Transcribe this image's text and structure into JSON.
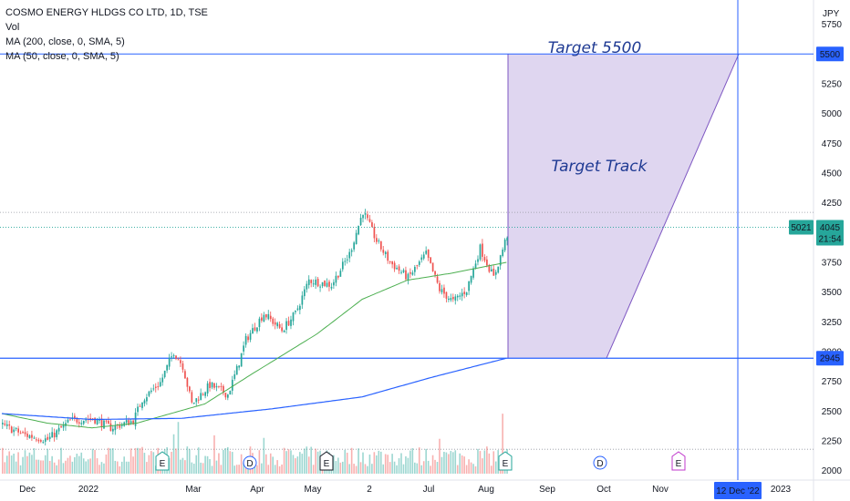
{
  "legend": {
    "title": "COSMO ENERGY HLDGS CO LTD, 1D, TSE",
    "vol": "Vol",
    "ma200": "MA (200, close, 0, SMA, 5)",
    "ma50": "MA (50, close, 0, SMA, 5)"
  },
  "annotations": {
    "target": "Target 5500",
    "track": "Target Track"
  },
  "badges": {
    "price_5500": "5500",
    "price_2945": "2945",
    "current_a": "5021",
    "current_b": "4045",
    "countdown": "21:54",
    "date": "12 Dec '22"
  },
  "colors": {
    "up": "#26a69a",
    "down": "#ef5350",
    "ma200": "#2962ff",
    "ma50": "#4caf50",
    "hline": "#2962ff",
    "zone": "#d1c4e9",
    "badge_blue": "#2962ff",
    "badge_green": "#26a69a"
  },
  "chart_data": {
    "type": "candlestick",
    "currency": "JPY",
    "y_ticks": [
      2000,
      2250,
      2500,
      2750,
      3000,
      3250,
      3500,
      3750,
      4000,
      4250,
      4500,
      4750,
      5000,
      5250,
      5500,
      5750
    ],
    "x_labels": [
      "Dec",
      "2022",
      "Mar",
      "Apr",
      "May",
      "2",
      "Jul",
      "Aug",
      "Sep",
      "Oct",
      "Nov",
      "12 Dec '22",
      "2023"
    ],
    "ylim": [
      1975,
      5900
    ],
    "price_series_anchors": [
      {
        "t": 0,
        "c": 2380
      },
      {
        "t": 10,
        "c": 2300
      },
      {
        "t": 20,
        "c": 2260
      },
      {
        "t": 30,
        "c": 2420
      },
      {
        "t": 40,
        "c": 2440
      },
      {
        "t": 48,
        "c": 2360
      },
      {
        "t": 58,
        "c": 2420
      },
      {
        "t": 62,
        "c": 2600
      },
      {
        "t": 70,
        "c": 2740
      },
      {
        "t": 76,
        "c": 3000
      },
      {
        "t": 80,
        "c": 2880
      },
      {
        "t": 84,
        "c": 2560
      },
      {
        "t": 92,
        "c": 2720
      },
      {
        "t": 100,
        "c": 2640
      },
      {
        "t": 104,
        "c": 2850
      },
      {
        "t": 108,
        "c": 3100
      },
      {
        "t": 116,
        "c": 3320
      },
      {
        "t": 124,
        "c": 3180
      },
      {
        "t": 130,
        "c": 3320
      },
      {
        "t": 136,
        "c": 3600
      },
      {
        "t": 146,
        "c": 3560
      },
      {
        "t": 154,
        "c": 3820
      },
      {
        "t": 160,
        "c": 4180
      },
      {
        "t": 166,
        "c": 3930
      },
      {
        "t": 172,
        "c": 3750
      },
      {
        "t": 180,
        "c": 3620
      },
      {
        "t": 188,
        "c": 3820
      },
      {
        "t": 194,
        "c": 3520
      },
      {
        "t": 200,
        "c": 3420
      },
      {
        "t": 206,
        "c": 3520
      },
      {
        "t": 212,
        "c": 3870
      },
      {
        "t": 218,
        "c": 3620
      },
      {
        "t": 224,
        "c": 3980
      }
    ],
    "ma50_anchors": [
      {
        "t": 0,
        "c": 2480
      },
      {
        "t": 20,
        "c": 2400
      },
      {
        "t": 40,
        "c": 2360
      },
      {
        "t": 60,
        "c": 2400
      },
      {
        "t": 90,
        "c": 2560
      },
      {
        "t": 110,
        "c": 2800
      },
      {
        "t": 140,
        "c": 3150
      },
      {
        "t": 160,
        "c": 3440
      },
      {
        "t": 180,
        "c": 3600
      },
      {
        "t": 200,
        "c": 3660
      },
      {
        "t": 224,
        "c": 3750
      }
    ],
    "ma200_anchors": [
      {
        "t": 0,
        "c": 2480
      },
      {
        "t": 40,
        "c": 2430
      },
      {
        "t": 80,
        "c": 2440
      },
      {
        "t": 120,
        "c": 2520
      },
      {
        "t": 160,
        "c": 2620
      },
      {
        "t": 190,
        "c": 2780
      },
      {
        "t": 224,
        "c": 2945
      }
    ],
    "levels": {
      "target": 5500,
      "support": 2945
    },
    "projection": {
      "zone_top": 5500,
      "zone_bottom": 2945
    }
  }
}
